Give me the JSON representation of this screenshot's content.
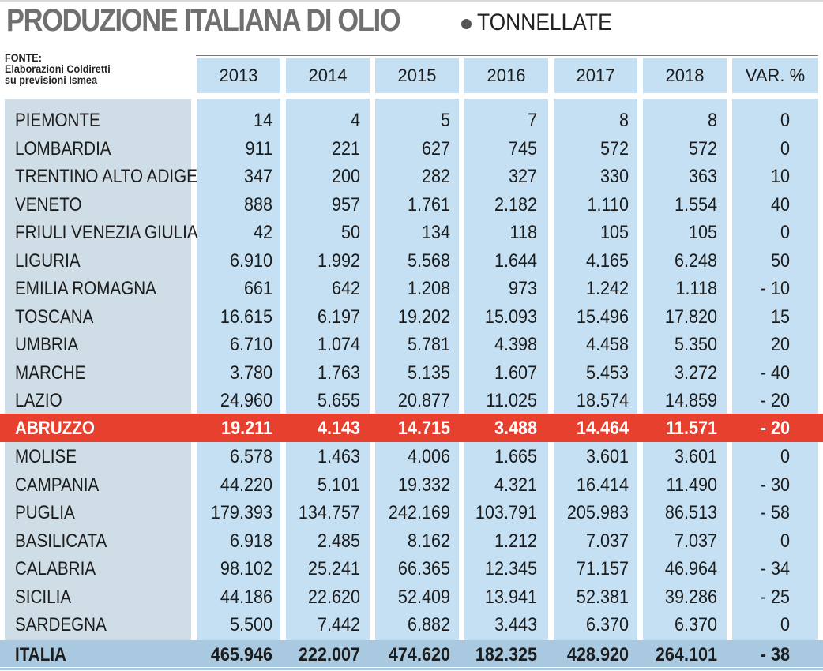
{
  "title": "PRODUZIONE ITALIANA DI OLIO",
  "unit": "TONNELLATE",
  "source": [
    "FONTE:",
    "Elaborazioni Coldiretti",
    "su previsioni Ismea"
  ],
  "chart_data": {
    "type": "table",
    "title": "PRODUZIONE ITALIANA DI OLIO",
    "subtitle": "TONNELLATE",
    "columns": [
      "2013",
      "2014",
      "2015",
      "2016",
      "2017",
      "2018",
      "VAR. %"
    ],
    "rows": [
      {
        "region": "PIEMONTE",
        "values": [
          "14",
          "4",
          "5",
          "7",
          "8",
          "8",
          "0"
        ]
      },
      {
        "region": "LOMBARDIA",
        "values": [
          "911",
          "221",
          "627",
          "745",
          "572",
          "572",
          "0"
        ]
      },
      {
        "region": "TRENTINO ALTO ADIGE",
        "values": [
          "347",
          "200",
          "282",
          "327",
          "330",
          "363",
          "10"
        ]
      },
      {
        "region": "VENETO",
        "values": [
          "888",
          "957",
          "1.761",
          "2.182",
          "1.110",
          "1.554",
          "40"
        ]
      },
      {
        "region": "FRIULI VENEZIA GIULIA",
        "values": [
          "42",
          "50",
          "134",
          "118",
          "105",
          "105",
          "0"
        ]
      },
      {
        "region": "LIGURIA",
        "values": [
          "6.910",
          "1.992",
          "5.568",
          "1.644",
          "4.165",
          "6.248",
          "50"
        ]
      },
      {
        "region": "EMILIA ROMAGNA",
        "values": [
          "661",
          "642",
          "1.208",
          "973",
          "1.242",
          "1.118",
          "- 10"
        ]
      },
      {
        "region": "TOSCANA",
        "values": [
          "16.615",
          "6.197",
          "19.202",
          "15.093",
          "15.496",
          "17.820",
          "15"
        ]
      },
      {
        "region": "UMBRIA",
        "values": [
          "6.710",
          "1.074",
          "5.781",
          "4.398",
          "4.458",
          "5.350",
          "20"
        ]
      },
      {
        "region": "MARCHE",
        "values": [
          "3.780",
          "1.763",
          "5.135",
          "1.607",
          "5.453",
          "3.272",
          "- 40"
        ]
      },
      {
        "region": "LAZIO",
        "values": [
          "24.960",
          "5.655",
          "20.877",
          "11.025",
          "18.574",
          "14.859",
          "- 20"
        ]
      },
      {
        "region": "ABRUZZO",
        "values": [
          "19.211",
          "4.143",
          "14.715",
          "3.488",
          "14.464",
          "11.571",
          "- 20"
        ],
        "highlight": true
      },
      {
        "region": "MOLISE",
        "values": [
          "6.578",
          "1.463",
          "4.006",
          "1.665",
          "3.601",
          "3.601",
          "0"
        ]
      },
      {
        "region": "CAMPANIA",
        "values": [
          "44.220",
          "5.101",
          "19.332",
          "4.321",
          "16.414",
          "11.490",
          "- 30"
        ]
      },
      {
        "region": "PUGLIA",
        "values": [
          "179.393",
          "134.757",
          "242.169",
          "103.791",
          "205.983",
          "86.513",
          "- 58"
        ]
      },
      {
        "region": "BASILICATA",
        "values": [
          "6.918",
          "2.485",
          "8.162",
          "1.212",
          "7.037",
          "7.037",
          "0"
        ]
      },
      {
        "region": "CALABRIA",
        "values": [
          "98.102",
          "25.241",
          "66.365",
          "12.345",
          "71.157",
          "46.964",
          "- 34"
        ]
      },
      {
        "region": "SICILIA",
        "values": [
          "44.186",
          "22.620",
          "52.409",
          "13.941",
          "52.381",
          "39.286",
          "- 25"
        ]
      },
      {
        "region": "SARDEGNA",
        "values": [
          "5.500",
          "7.442",
          "6.882",
          "3.443",
          "6.370",
          "6.370",
          "0"
        ]
      }
    ],
    "total": {
      "region": "ITALIA",
      "values": [
        "465.946",
        "222.007",
        "474.620",
        "182.325",
        "428.920",
        "264.101",
        "- 38"
      ]
    }
  },
  "colors": {
    "highlight": "#e8402f",
    "column_fill": "#c4e0f2",
    "name_fill": "#cfdde6",
    "total_fill": "#a9c9e0"
  }
}
